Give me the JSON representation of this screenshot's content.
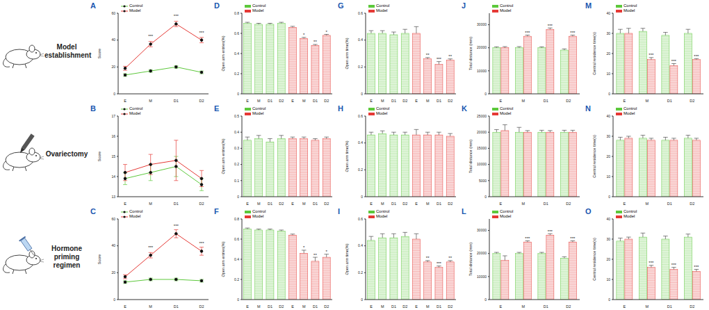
{
  "row_labels": [
    "Model establishment",
    "Ovariectomy",
    "Hormone priming regimen"
  ],
  "chart_data": [
    {
      "panel": "A",
      "type": "line",
      "y_label": "Score",
      "categories": [
        "E",
        "M",
        "D1",
        "D2"
      ],
      "ylim": [
        0,
        60
      ],
      "yticks": [
        0,
        20,
        40,
        60
      ],
      "series": [
        {
          "name": "Control",
          "color": "#5cc83b",
          "marker": "circle",
          "values": [
            14,
            17,
            20,
            16
          ],
          "errors": [
            1,
            1,
            1,
            1
          ]
        },
        {
          "name": "Model",
          "color": "#e53935",
          "marker": "circle",
          "values": [
            19,
            37,
            52,
            40
          ],
          "errors": [
            1.5,
            2,
            2,
            2
          ],
          "significance": [
            null,
            "***",
            "***",
            "***"
          ]
        }
      ]
    },
    {
      "panel": "B",
      "type": "line",
      "y_label": "Score",
      "categories": [
        "E",
        "M",
        "D1",
        "D2"
      ],
      "ylim": [
        13,
        17
      ],
      "yticks": [
        13,
        14,
        15,
        16,
        17
      ],
      "series": [
        {
          "name": "Control",
          "color": "#5cc83b",
          "marker": "circle",
          "values": [
            13.9,
            14.2,
            14.5,
            13.6
          ],
          "errors": [
            0.3,
            0.4,
            0.5,
            0.3
          ]
        },
        {
          "name": "Model",
          "color": "#e53935",
          "marker": "circle",
          "values": [
            14.2,
            14.6,
            14.8,
            13.9
          ],
          "errors": [
            0.4,
            0.5,
            1.0,
            0.4
          ]
        }
      ]
    },
    {
      "panel": "C",
      "type": "line",
      "y_label": "Score",
      "categories": [
        "E",
        "M",
        "D1",
        "D2"
      ],
      "ylim": [
        0,
        60
      ],
      "yticks": [
        0,
        20,
        40,
        60
      ],
      "series": [
        {
          "name": "Control",
          "color": "#5cc83b",
          "marker": "circle",
          "values": [
            13,
            15,
            15,
            14
          ],
          "errors": [
            1,
            1,
            1,
            1
          ]
        },
        {
          "name": "Model",
          "color": "#e53935",
          "marker": "circle",
          "values": [
            17,
            33,
            49,
            36
          ],
          "errors": [
            1.5,
            2,
            3,
            3
          ],
          "significance": [
            null,
            "***",
            "***",
            "***"
          ]
        }
      ]
    },
    {
      "panel": "D",
      "type": "bar",
      "stacked": true,
      "y_label": "Open arm entries(%)",
      "categories": [
        "E",
        "M",
        "D1",
        "D2",
        "E",
        "M",
        "D1",
        "D2"
      ],
      "ylim": [
        0,
        0.8
      ],
      "yticks": [
        0,
        0.2,
        0.4,
        0.6,
        0.8
      ],
      "series": [
        {
          "name": "Control",
          "color": "#5cc83b",
          "values": [
            0.7,
            0.69,
            0.69,
            0.7,
            null,
            null,
            null,
            null
          ],
          "errors": [
            0.01,
            0.01,
            0.01,
            0.01,
            null,
            null,
            null,
            null
          ]
        },
        {
          "name": "Model",
          "color": "#e53935",
          "values": [
            null,
            null,
            null,
            null,
            0.66,
            0.55,
            0.48,
            0.58
          ],
          "errors": [
            null,
            null,
            null,
            null,
            0.01,
            0.01,
            0.01,
            0.01
          ],
          "significance": [
            null,
            null,
            null,
            null,
            null,
            "*",
            "**",
            "*"
          ]
        }
      ]
    },
    {
      "panel": "E",
      "type": "bar",
      "stacked": true,
      "y_label": "Open arm entries(%)",
      "categories": [
        "E",
        "M",
        "D1",
        "D2",
        "E",
        "M",
        "D1",
        "D2"
      ],
      "ylim": [
        0,
        0.5
      ],
      "yticks": [
        0,
        0.1,
        0.2,
        0.3,
        0.4,
        0.5
      ],
      "series": [
        {
          "name": "Control",
          "color": "#5cc83b",
          "values": [
            0.35,
            0.36,
            0.34,
            0.36,
            null,
            null,
            null,
            null
          ],
          "errors": [
            0.02,
            0.02,
            0.02,
            0.02,
            null,
            null,
            null,
            null
          ]
        },
        {
          "name": "Model",
          "color": "#e53935",
          "values": [
            null,
            null,
            null,
            null,
            0.36,
            0.36,
            0.35,
            0.36
          ],
          "errors": [
            null,
            null,
            null,
            null,
            0.01,
            0.01,
            0.01,
            0.01
          ]
        }
      ]
    },
    {
      "panel": "F",
      "type": "bar",
      "stacked": true,
      "y_label": "Open arm entries(%)",
      "categories": [
        "E",
        "M",
        "D1",
        "D2",
        "E",
        "M",
        "D1",
        "D2"
      ],
      "ylim": [
        0,
        0.8
      ],
      "yticks": [
        0,
        0.2,
        0.4,
        0.6,
        0.8
      ],
      "series": [
        {
          "name": "Control",
          "color": "#5cc83b",
          "values": [
            0.7,
            0.69,
            0.69,
            0.68,
            null,
            null,
            null,
            null
          ],
          "errors": [
            0.01,
            0.01,
            0.01,
            0.01,
            null,
            null,
            null,
            null
          ]
        },
        {
          "name": "Model",
          "color": "#e53935",
          "values": [
            null,
            null,
            null,
            null,
            0.64,
            0.46,
            0.38,
            0.42
          ],
          "errors": [
            null,
            null,
            null,
            null,
            0.01,
            0.03,
            0.04,
            0.03
          ],
          "significance": [
            null,
            null,
            null,
            null,
            null,
            "*",
            "**",
            "*"
          ]
        }
      ]
    },
    {
      "panel": "G",
      "type": "bar",
      "stacked": true,
      "y_label": "Open arm time(%)",
      "categories": [
        "E",
        "M",
        "D1",
        "D2",
        "E",
        "M",
        "D1",
        "D2"
      ],
      "ylim": [
        0,
        0.6
      ],
      "yticks": [
        0,
        0.2,
        0.4,
        0.6
      ],
      "series": [
        {
          "name": "Control",
          "color": "#5cc83b",
          "values": [
            0.45,
            0.45,
            0.44,
            0.45,
            null,
            null,
            null,
            null
          ],
          "errors": [
            0.02,
            0.02,
            0.02,
            0.03,
            null,
            null,
            null,
            null
          ]
        },
        {
          "name": "Model",
          "color": "#e53935",
          "values": [
            null,
            null,
            null,
            null,
            0.45,
            0.26,
            0.22,
            0.25
          ],
          "errors": [
            null,
            null,
            null,
            null,
            0.05,
            0.01,
            0.02,
            0.01
          ],
          "significance": [
            null,
            null,
            null,
            null,
            null,
            "**",
            "***",
            "**"
          ]
        }
      ]
    },
    {
      "panel": "H",
      "type": "bar",
      "stacked": true,
      "y_label": "Open arm time(%)",
      "categories": [
        "E",
        "M",
        "D1",
        "D2",
        "E",
        "M",
        "D1",
        "D2"
      ],
      "ylim": [
        0,
        0.6
      ],
      "yticks": [
        0,
        0.2,
        0.4,
        0.6
      ],
      "series": [
        {
          "name": "Control",
          "color": "#5cc83b",
          "values": [
            0.46,
            0.47,
            0.46,
            0.46,
            null,
            null,
            null,
            null
          ],
          "errors": [
            0.02,
            0.02,
            0.02,
            0.02,
            null,
            null,
            null,
            null
          ]
        },
        {
          "name": "Model",
          "color": "#e53935",
          "values": [
            null,
            null,
            null,
            null,
            0.46,
            0.46,
            0.46,
            0.45
          ],
          "errors": [
            null,
            null,
            null,
            null,
            0.04,
            0.02,
            0.02,
            0.02
          ]
        }
      ]
    },
    {
      "panel": "I",
      "type": "bar",
      "stacked": true,
      "y_label": "Open arm time(%)",
      "categories": [
        "E",
        "M",
        "D1",
        "D2",
        "E",
        "M",
        "D1",
        "D2"
      ],
      "ylim": [
        0,
        0.6
      ],
      "yticks": [
        0,
        0.2,
        0.4,
        0.6
      ],
      "series": [
        {
          "name": "Control",
          "color": "#5cc83b",
          "values": [
            0.44,
            0.46,
            0.46,
            0.47,
            null,
            null,
            null,
            null
          ],
          "errors": [
            0.03,
            0.03,
            0.03,
            0.03,
            null,
            null,
            null,
            null
          ]
        },
        {
          "name": "Model",
          "color": "#e53935",
          "values": [
            null,
            null,
            null,
            null,
            0.45,
            0.28,
            0.24,
            0.28
          ],
          "errors": [
            null,
            null,
            null,
            null,
            0.04,
            0.01,
            0.01,
            0.01
          ],
          "significance": [
            null,
            null,
            null,
            null,
            null,
            "**",
            "***",
            "**"
          ]
        }
      ]
    },
    {
      "panel": "J",
      "type": "bar",
      "y_label": "Total distance (mm)",
      "categories": [
        "E",
        "M",
        "D1",
        "D2"
      ],
      "ylim": [
        0,
        35000
      ],
      "yticks": [
        0,
        10000,
        20000,
        30000
      ],
      "series": [
        {
          "name": "Control",
          "color": "#5cc83b",
          "values": [
            20000,
            20000,
            20000,
            19000
          ],
          "errors": [
            400,
            500,
            400,
            500
          ]
        },
        {
          "name": "Model",
          "color": "#e53935",
          "values": [
            20000,
            25000,
            28000,
            25000
          ],
          "errors": [
            500,
            500,
            600,
            500
          ],
          "significance": [
            null,
            "***",
            "***",
            "***"
          ]
        }
      ]
    },
    {
      "panel": "K",
      "type": "bar",
      "y_label": "Total distance (mm)",
      "categories": [
        "E",
        "M",
        "D1",
        "D2"
      ],
      "ylim": [
        0,
        25000
      ],
      "yticks": [
        0,
        5000,
        10000,
        15000,
        20000,
        25000
      ],
      "series": [
        {
          "name": "Control",
          "color": "#5cc83b",
          "values": [
            20000,
            20000,
            20000,
            20000
          ],
          "errors": [
            800,
            1500,
            600,
            600
          ]
        },
        {
          "name": "Model",
          "color": "#e53935",
          "values": [
            20500,
            20000,
            20000,
            20000
          ],
          "errors": [
            1800,
            500,
            500,
            600
          ]
        }
      ]
    },
    {
      "panel": "L",
      "type": "bar",
      "y_label": "Total distance (mm)",
      "categories": [
        "E",
        "M",
        "D1",
        "D2"
      ],
      "ylim": [
        0,
        35000
      ],
      "yticks": [
        0,
        10000,
        20000,
        30000
      ],
      "series": [
        {
          "name": "Control",
          "color": "#5cc83b",
          "values": [
            20000,
            20000,
            20000,
            18000
          ],
          "errors": [
            500,
            500,
            500,
            600
          ]
        },
        {
          "name": "Model",
          "color": "#e53935",
          "values": [
            17000,
            25000,
            28000,
            25000
          ],
          "errors": [
            2000,
            500,
            600,
            500
          ],
          "significance": [
            null,
            "***",
            "***",
            "***"
          ]
        }
      ]
    },
    {
      "panel": "M",
      "type": "bar",
      "y_label": "Central residence time(s)",
      "categories": [
        "E",
        "M",
        "D1",
        "D2"
      ],
      "ylim": [
        0,
        40
      ],
      "yticks": [
        0,
        10,
        20,
        30,
        40
      ],
      "series": [
        {
          "name": "Control",
          "color": "#5cc83b",
          "values": [
            30,
            31,
            29,
            30
          ],
          "errors": [
            2,
            1.5,
            1.5,
            2
          ]
        },
        {
          "name": "Model",
          "color": "#e53935",
          "values": [
            30,
            17,
            14,
            17
          ],
          "errors": [
            2.5,
            1,
            1,
            0.5
          ],
          "significance": [
            null,
            "***",
            "***",
            "***"
          ]
        }
      ]
    },
    {
      "panel": "N",
      "type": "bar",
      "y_label": "Central residence time(s)",
      "categories": [
        "E",
        "M",
        "D1",
        "D2"
      ],
      "ylim": [
        0,
        40
      ],
      "yticks": [
        0,
        10,
        20,
        30,
        40
      ],
      "series": [
        {
          "name": "Control",
          "color": "#5cc83b",
          "values": [
            28,
            29,
            28,
            29
          ],
          "errors": [
            1.5,
            1.5,
            1.5,
            1.5
          ]
        },
        {
          "name": "Model",
          "color": "#e53935",
          "values": [
            29,
            28,
            28,
            28
          ],
          "errors": [
            1,
            1,
            1,
            1
          ]
        }
      ]
    },
    {
      "panel": "O",
      "type": "bar",
      "y_label": "Central residence time(s)",
      "categories": [
        "E",
        "M",
        "D1",
        "D2"
      ],
      "ylim": [
        0,
        40
      ],
      "yticks": [
        0,
        10,
        20,
        30,
        40
      ],
      "series": [
        {
          "name": "Control",
          "color": "#5cc83b",
          "values": [
            29,
            31,
            30,
            31
          ],
          "errors": [
            1.5,
            2,
            1.5,
            1.5
          ]
        },
        {
          "name": "Model",
          "color": "#e53935",
          "values": [
            30,
            16,
            15,
            14
          ],
          "errors": [
            1,
            1,
            1,
            1
          ],
          "significance": [
            null,
            "***",
            "***",
            "***"
          ]
        }
      ]
    }
  ]
}
